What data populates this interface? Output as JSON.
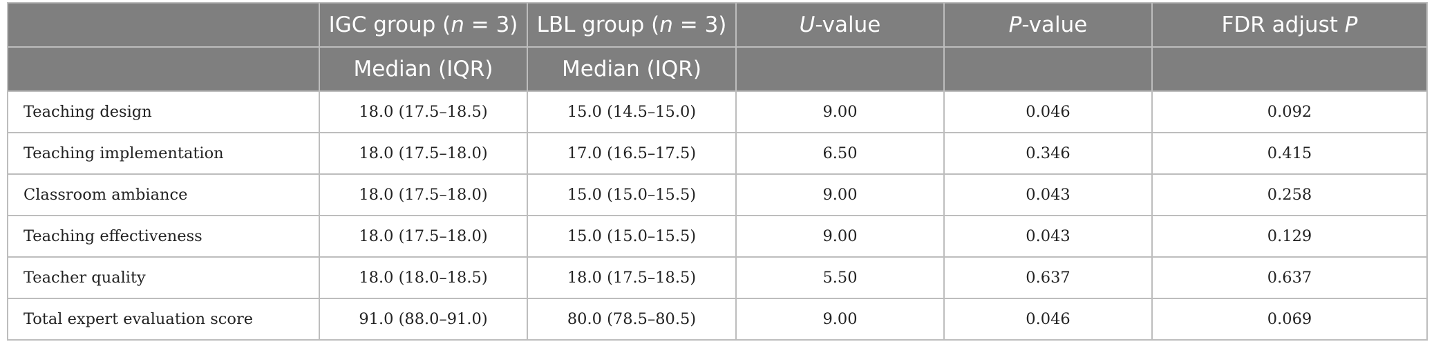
{
  "header": {
    "row1": [
      "",
      {
        "pre": "IGC group (",
        "it": "n",
        "post": " = 3)"
      },
      {
        "pre": "LBL group (",
        "it": "n",
        "post": " = 3)"
      },
      {
        "pre": "",
        "it": "U",
        "post": "-value"
      },
      {
        "pre": "",
        "it": "P",
        "post": "-value"
      },
      {
        "pre": "FDR adjust ",
        "it": "P",
        "post": ""
      }
    ],
    "row2": [
      "",
      "Median (IQR)",
      "Median (IQR)",
      "",
      "",
      ""
    ]
  },
  "rows": [
    {
      "label": "Teaching design",
      "igc": "18.0 (17.5–18.5)",
      "lbl": "15.0 (14.5–15.0)",
      "u": "9.00",
      "p": "0.046",
      "fdr": "0.092"
    },
    {
      "label": "Teaching implementation",
      "igc": "18.0 (17.5–18.0)",
      "lbl": "17.0 (16.5–17.5)",
      "u": "6.50",
      "p": "0.346",
      "fdr": "0.415"
    },
    {
      "label": "Classroom ambiance",
      "igc": "18.0 (17.5–18.0)",
      "lbl": "15.0 (15.0–15.5)",
      "u": "9.00",
      "p": "0.043",
      "fdr": "0.258"
    },
    {
      "label": "Teaching effectiveness",
      "igc": "18.0 (17.5–18.0)",
      "lbl": "15.0 (15.0–15.5)",
      "u": "9.00",
      "p": "0.043",
      "fdr": "0.129"
    },
    {
      "label": "Teacher quality",
      "igc": "18.0 (18.0–18.5)",
      "lbl": "18.0 (17.5–18.5)",
      "u": "5.50",
      "p": "0.637",
      "fdr": "0.637"
    },
    {
      "label": "Total expert evaluation score",
      "igc": "91.0 (88.0–91.0)",
      "lbl": "80.0 (78.5–80.5)",
      "u": "9.00",
      "p": "0.046",
      "fdr": "0.069"
    }
  ]
}
